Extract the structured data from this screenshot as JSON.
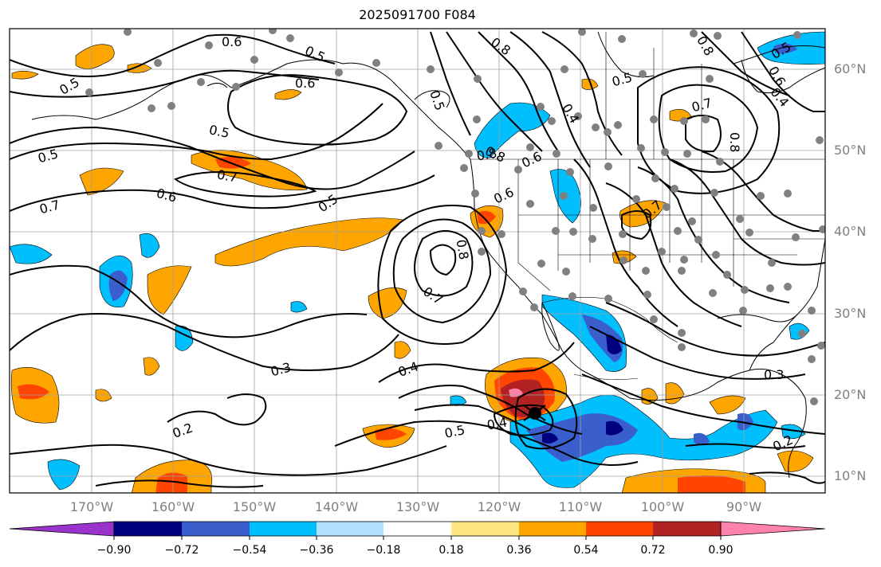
{
  "title": "2025091700 F084",
  "map": {
    "projection": "cylindrical",
    "lon_range": [
      "180°W",
      "80°W"
    ],
    "lat_range": [
      "8°N",
      "66°N"
    ],
    "latitude_labels": [
      "60°N",
      "50°N",
      "40°N",
      "30°N",
      "20°N",
      "10°N"
    ],
    "longitude_labels": [
      "170°W",
      "160°W",
      "150°W",
      "140°W",
      "130°W",
      "120°W",
      "110°W",
      "100°W",
      "90°W"
    ],
    "gridlines": true,
    "gridline_color": "#a0a0a0",
    "coastline_color": "#000000",
    "station_marker_color": "#808080",
    "label_color": "#808080"
  },
  "contour_labels": [
    "0.6",
    "0.5",
    "0.5",
    "0.6",
    "0.5",
    "0.7",
    "0.6",
    "0.5",
    "0.5",
    "0.7",
    "0.8",
    "0.7",
    "0.8",
    "0.8",
    "0.6",
    "0.8",
    "0.7",
    "0.6",
    "0.5",
    "0.4",
    "0.5",
    "0.4",
    "0.3",
    "0.2",
    "0.3",
    "0.2",
    "0.8",
    "0.5",
    "0.4",
    "0.6",
    "0.4",
    "0.5",
    "0.7",
    "0.8"
  ],
  "colorbar": {
    "ticks": [
      "−0.90",
      "−0.72",
      "−0.54",
      "−0.36",
      "−0.18",
      "0.18",
      "0.36",
      "0.54",
      "0.72",
      "0.90"
    ],
    "colors": [
      "#9933cc",
      "#000080",
      "#3a5fcd",
      "#00bfff",
      "#b0e2ff",
      "#ffffff",
      "#ffe680",
      "#ffa500",
      "#ff4500",
      "#b22222",
      "#ff82ab"
    ],
    "extend": "both"
  }
}
